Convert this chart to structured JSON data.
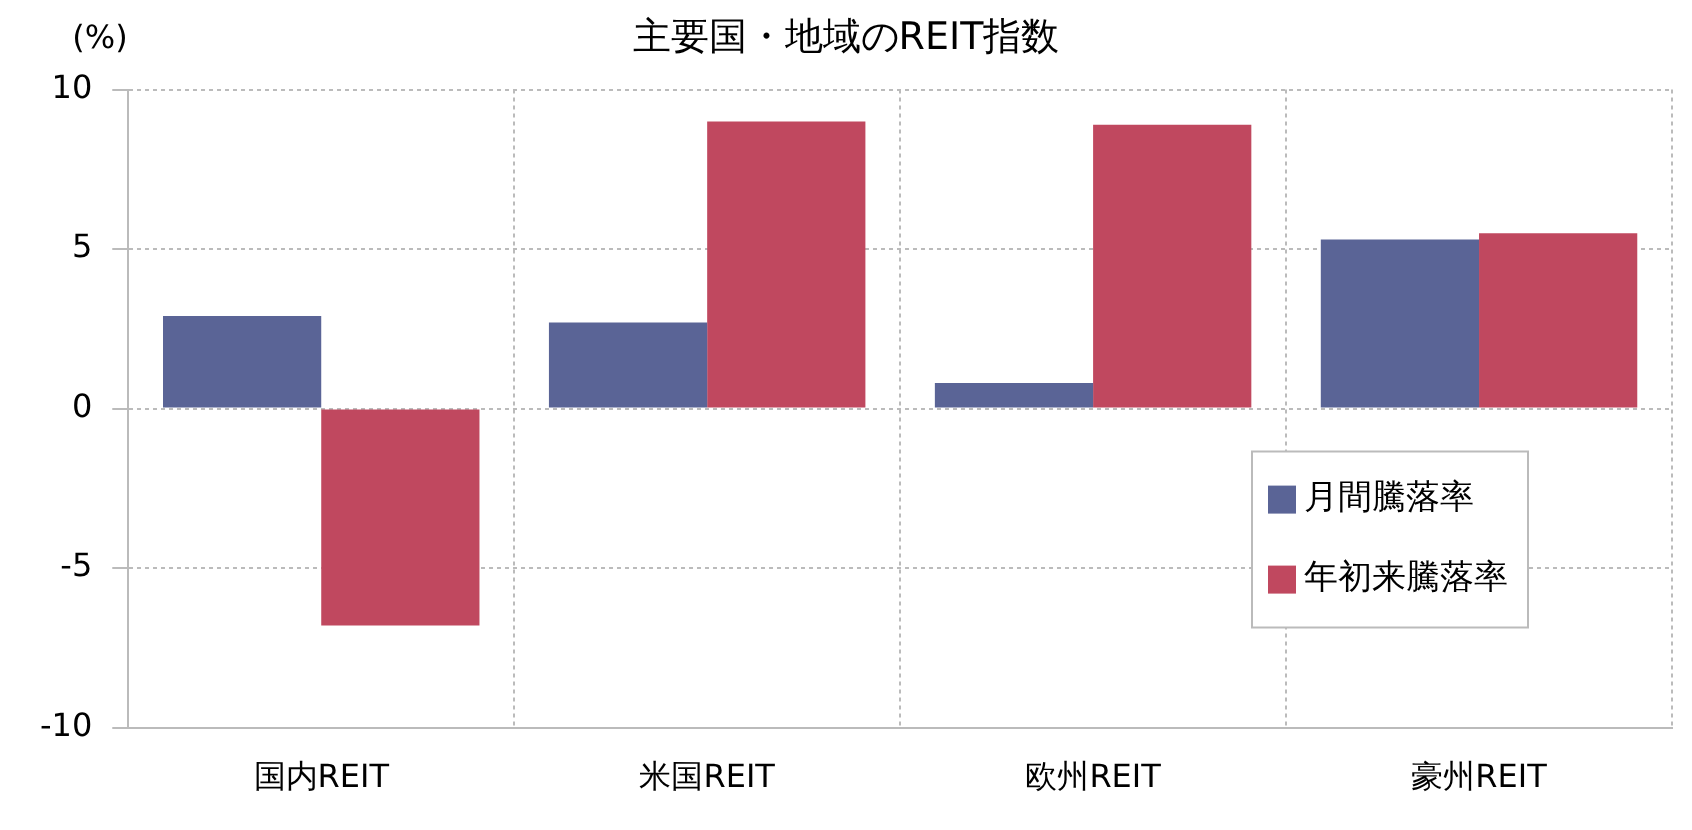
{
  "chart_data": {
    "type": "bar",
    "title": "主要国・地域のREIT指数",
    "ylabel": "(%)",
    "categories": [
      "国内REIT",
      "米国REIT",
      "欧州REIT",
      "豪州REIT"
    ],
    "series": [
      {
        "name": "月間騰落率",
        "color": "#5a6496",
        "values": [
          2.9,
          2.7,
          0.8,
          5.3
        ]
      },
      {
        "name": "年初来騰落率",
        "color": "#c0485f",
        "values": [
          -6.8,
          9.0,
          8.9,
          5.5
        ]
      }
    ],
    "ylim": [
      -10,
      10
    ],
    "yticks": [
      -10,
      -5,
      0,
      5,
      10
    ],
    "grid": true,
    "legend": "bottom right"
  }
}
